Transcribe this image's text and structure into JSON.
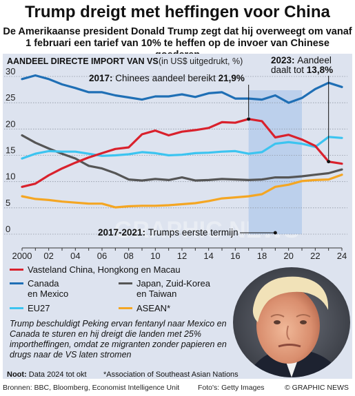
{
  "title": "Trump dreigt met heffingen voor China",
  "subtitle": "De Amerikaanse president Donald Trump zegt dat hij overweegt om vanaf 1 februari een tarief van 10% te heffen op de invoer van Chinese goederen",
  "section_title": "Aandeel directe import van VS",
  "section_unit": "(in US$ uitgedrukt, %)",
  "annotations": {
    "a2017_prefix": "2017:",
    "a2017_text": "Chinees aandeel bereikt",
    "a2017_value": "21,9%",
    "a2023_prefix": "2023:",
    "a2023_text": "Aandeel",
    "a2023_text2": "daalt tot",
    "a2023_value": "13,8%",
    "term_prefix": "2017-2021:",
    "term_text": "Trumps eerste termijn"
  },
  "legend": [
    {
      "label": "Vasteland China, Hongkong en Macau",
      "color": "#d9212c"
    },
    {
      "label": "Canada\nen Mexico",
      "color": "#1f6fb5"
    },
    {
      "label": "Japan, Zuid-Korea\nen Taiwan",
      "color": "#555555"
    },
    {
      "label": "EU27",
      "color": "#3cc4f0"
    },
    {
      "label": "ASEAN*",
      "color": "#f4a623"
    }
  ],
  "description": "Trump beschuldigt Peking ervan fentanyl naar Mexico en Canada te sturen en hij dreigt die landen met 25% importheffingen, omdat ze migranten zonder papieren en drugs naar de VS laten stromen",
  "note_label": "Noot:",
  "note_text": "Data 2024 tot okt",
  "footnote": "*Association of Southeast Asian Nations",
  "sources": "Bronnen: BBC, Bloomberg, Economist Intelligence Unit",
  "photo_credit": "Foto's: Getty Images",
  "copyright": "© GRAPHIC NEWS",
  "watermark": "GRAPHIC NEWS",
  "chart_data": {
    "type": "line",
    "x": [
      2000,
      2001,
      2002,
      2003,
      2004,
      2005,
      2006,
      2007,
      2008,
      2009,
      2010,
      2011,
      2012,
      2013,
      2014,
      2015,
      2016,
      2017,
      2018,
      2019,
      2020,
      2021,
      2022,
      2023,
      2024
    ],
    "x_tick_labels": [
      "2000",
      "02",
      "04",
      "06",
      "08",
      "10",
      "12",
      "14",
      "16",
      "18",
      "20",
      "22",
      "24"
    ],
    "x_tick_values": [
      2000,
      2002,
      2004,
      2006,
      2008,
      2010,
      2012,
      2014,
      2016,
      2018,
      2020,
      2022,
      2024
    ],
    "ylim": [
      0,
      30
    ],
    "y_ticks": [
      0,
      5,
      10,
      15,
      20,
      25,
      30
    ],
    "highlight_range": [
      2017,
      2021
    ],
    "series": [
      {
        "name": "Vasteland China, Hongkong en Macau",
        "color": "#d9212c",
        "values": [
          9.0,
          9.6,
          11.2,
          12.5,
          13.6,
          14.6,
          15.4,
          16.2,
          16.5,
          19.0,
          19.7,
          18.8,
          19.5,
          19.8,
          20.2,
          21.3,
          21.2,
          21.9,
          21.5,
          18.4,
          18.9,
          18.0,
          16.8,
          13.8,
          13.4
        ]
      },
      {
        "name": "Canada en Mexico",
        "color": "#1f6fb5",
        "values": [
          29.5,
          30.2,
          29.5,
          28.5,
          27.8,
          27.0,
          27.0,
          26.4,
          26.0,
          25.6,
          26.2,
          26.2,
          26.6,
          26.1,
          26.8,
          27.0,
          25.8,
          25.8,
          25.6,
          26.4,
          25.0,
          25.9,
          27.6,
          28.8,
          28.0
        ]
      },
      {
        "name": "Japan, Zuid-Korea en Taiwan",
        "color": "#555555",
        "values": [
          18.8,
          17.4,
          16.3,
          15.3,
          14.4,
          13.0,
          12.5,
          11.6,
          10.4,
          10.2,
          10.5,
          10.3,
          10.8,
          10.2,
          10.3,
          10.5,
          10.4,
          10.3,
          10.4,
          10.8,
          10.8,
          11.0,
          11.3,
          11.6,
          12.3
        ]
      },
      {
        "name": "EU27",
        "color": "#3cc4f0",
        "values": [
          14.4,
          15.3,
          15.8,
          15.7,
          15.7,
          15.3,
          14.9,
          15.0,
          15.2,
          15.6,
          15.4,
          15.0,
          15.1,
          15.4,
          15.5,
          15.7,
          15.8,
          15.3,
          15.6,
          17.2,
          17.5,
          17.2,
          16.6,
          18.5,
          18.3
        ]
      },
      {
        "name": "ASEAN*",
        "color": "#f4a623",
        "values": [
          7.2,
          6.7,
          6.5,
          6.2,
          6.0,
          5.8,
          5.8,
          5.1,
          5.3,
          5.4,
          5.4,
          5.5,
          5.7,
          5.9,
          6.3,
          6.8,
          7.0,
          7.2,
          7.6,
          9.0,
          9.4,
          10.1,
          10.3,
          10.4,
          11.3
        ]
      }
    ]
  }
}
